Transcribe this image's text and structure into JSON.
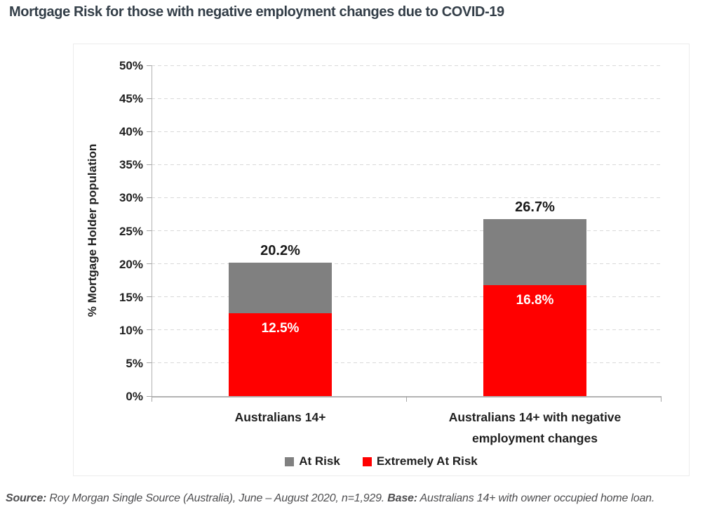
{
  "page": {
    "title": "Mortgage Risk for those with negative employment changes due to COVID-19",
    "footnote": {
      "source_label": "Source:",
      "source_text": "Roy Morgan Single Source (Australia), June – August 2020, n=1,929.",
      "base_label": "Base:",
      "base_text": "Australians 14+ with owner occupied home loan."
    }
  },
  "chart_data": {
    "type": "bar",
    "stacked": true,
    "title": "Mortgage Risk for those with negative employment changes due to COVID-19",
    "xlabel": "",
    "ylabel": "% Mortgage Holder population",
    "ylim": [
      0,
      50
    ],
    "ytick_step": 5,
    "ytick_suffix": "%",
    "grid": "horizontal-dashed",
    "legend_position": "bottom",
    "categories": [
      "Australians 14+",
      "Australians 14+ with negative employment changes"
    ],
    "category_lines": [
      [
        "Australians 14+"
      ],
      [
        "Australians 14+ with negative",
        "employment changes"
      ]
    ],
    "series": [
      {
        "name": "Extremely At Risk",
        "color": "#ff0000",
        "values": [
          12.5,
          16.8
        ],
        "value_labels": [
          "12.5%",
          "16.8%"
        ],
        "label_color": "#ffffff"
      },
      {
        "name": "At Risk",
        "color": "#808080",
        "values": [
          7.7,
          9.9
        ],
        "value_labels": [
          null,
          null
        ]
      }
    ],
    "totals": [
      20.2,
      26.7
    ],
    "total_labels": [
      "20.2%",
      "26.7%"
    ],
    "legend": [
      {
        "label": "At Risk",
        "color": "#808080"
      },
      {
        "label": "Extremely At Risk",
        "color": "#ff0000"
      }
    ],
    "colors": {
      "grid": "#d9d9d9",
      "axis": "#a6a6a6",
      "tick_text": "#1f1f1f"
    }
  }
}
